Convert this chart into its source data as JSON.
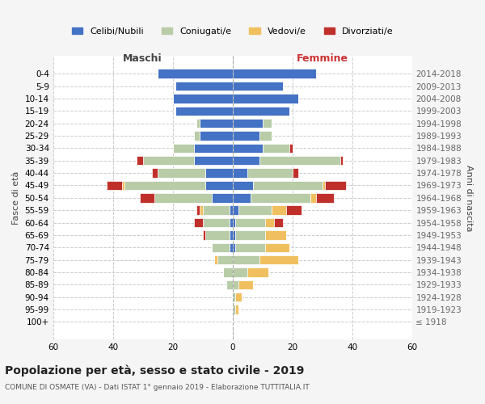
{
  "age_groups": [
    "100+",
    "95-99",
    "90-94",
    "85-89",
    "80-84",
    "75-79",
    "70-74",
    "65-69",
    "60-64",
    "55-59",
    "50-54",
    "45-49",
    "40-44",
    "35-39",
    "30-34",
    "25-29",
    "20-24",
    "15-19",
    "10-14",
    "5-9",
    "0-4"
  ],
  "birth_years": [
    "≤ 1918",
    "1919-1923",
    "1924-1928",
    "1929-1933",
    "1934-1938",
    "1939-1943",
    "1944-1948",
    "1949-1953",
    "1954-1958",
    "1959-1963",
    "1964-1968",
    "1969-1973",
    "1974-1978",
    "1979-1983",
    "1984-1988",
    "1989-1993",
    "1994-1998",
    "1999-2003",
    "2004-2008",
    "2009-2013",
    "2014-2018"
  ],
  "male": {
    "celibi": [
      0,
      0,
      0,
      0,
      0,
      0,
      1,
      1,
      1,
      1,
      7,
      9,
      9,
      13,
      13,
      11,
      11,
      19,
      20,
      19,
      25
    ],
    "coniugati": [
      0,
      0,
      0,
      2,
      3,
      5,
      6,
      8,
      9,
      9,
      19,
      27,
      16,
      17,
      7,
      2,
      1,
      0,
      0,
      0,
      0
    ],
    "vedovi": [
      0,
      0,
      0,
      0,
      0,
      1,
      0,
      0,
      0,
      1,
      0,
      1,
      0,
      0,
      0,
      0,
      0,
      0,
      0,
      0,
      0
    ],
    "divorziati": [
      0,
      0,
      0,
      0,
      0,
      0,
      0,
      1,
      3,
      1,
      5,
      5,
      2,
      2,
      0,
      0,
      0,
      0,
      0,
      0,
      0
    ]
  },
  "female": {
    "nubili": [
      0,
      0,
      0,
      0,
      0,
      0,
      1,
      1,
      1,
      2,
      6,
      7,
      5,
      9,
      10,
      9,
      10,
      19,
      22,
      17,
      28
    ],
    "coniugate": [
      0,
      1,
      1,
      2,
      5,
      9,
      10,
      10,
      10,
      11,
      20,
      23,
      15,
      27,
      9,
      4,
      3,
      0,
      0,
      0,
      0
    ],
    "vedove": [
      0,
      1,
      2,
      5,
      7,
      13,
      8,
      7,
      3,
      5,
      2,
      1,
      0,
      0,
      0,
      0,
      0,
      0,
      0,
      0,
      0
    ],
    "divorziate": [
      0,
      0,
      0,
      0,
      0,
      0,
      0,
      0,
      3,
      5,
      6,
      7,
      2,
      1,
      1,
      0,
      0,
      0,
      0,
      0,
      0
    ]
  },
  "colors": {
    "celibi": "#4472c4",
    "coniugati": "#b8cca8",
    "vedovi": "#f0c060",
    "divorziati": "#c0302a"
  },
  "xlim": 60,
  "title": "Popolazione per età, sesso e stato civile - 2019",
  "subtitle": "COMUNE DI OSMATE (VA) - Dati ISTAT 1° gennaio 2019 - Elaborazione TUTTITALIA.IT",
  "ylabel_left": "Fasce di età",
  "ylabel_right": "Anni di nascita",
  "xlabel_left": "Maschi",
  "xlabel_right": "Femmine",
  "bg_color": "#f5f5f5",
  "plot_bg": "#ffffff"
}
